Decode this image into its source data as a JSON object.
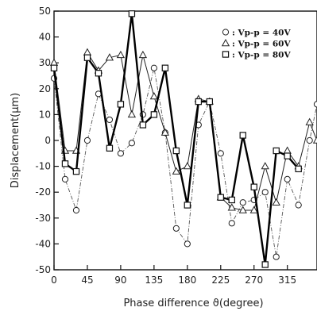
{
  "chart_data": {
    "type": "line",
    "title": "",
    "xlabel": "Phase difference ϑ(degree)",
    "ylabel": "Displacement(μm)",
    "xlim": [
      0,
      355
    ],
    "ylim": [
      -50,
      50
    ],
    "x_ticks": [
      0,
      45,
      90,
      135,
      180,
      225,
      270,
      315
    ],
    "y_ticks": [
      -50,
      -40,
      -30,
      -20,
      -10,
      0,
      10,
      20,
      30,
      40,
      50
    ],
    "x_tick_labels": [
      "0",
      "45",
      "90",
      "135",
      "180",
      "225",
      "270",
      "315"
    ],
    "y_tick_labels": [
      "-50",
      "-40",
      "-30",
      "-20",
      "-10",
      "0",
      "10",
      "20",
      "30",
      "40",
      "50"
    ],
    "grid": false,
    "legend_position": "top-right",
    "x": [
      0,
      15,
      30,
      45,
      60,
      75,
      90,
      105,
      120,
      135,
      150,
      165,
      180,
      195,
      210,
      225,
      240,
      255,
      270,
      285,
      300,
      315,
      330,
      345,
      355
    ],
    "series": [
      {
        "name": "Vp-p = 40V",
        "marker": "circle",
        "line_style": "dash-dot",
        "values": [
          24,
          -15,
          -27,
          0,
          18,
          8,
          -5,
          -1,
          10,
          28,
          3,
          -34,
          -40,
          6,
          15,
          -5,
          -32,
          -24,
          -23,
          -20,
          -45,
          -15,
          -25,
          0,
          14
        ]
      },
      {
        "name": "Vp-p = 60V",
        "marker": "triangle",
        "line_style": "thin-solid",
        "values": [
          30,
          -4,
          -4,
          34,
          27,
          32,
          33,
          10,
          33,
          17,
          3,
          -12,
          -10,
          16,
          15,
          -22,
          -26,
          -27,
          -27,
          -10,
          -24,
          -4,
          -10,
          7,
          0
        ]
      },
      {
        "name": "Vp-p = 80V",
        "marker": "square",
        "line_style": "thick-solid",
        "values": [
          28,
          -9,
          -12,
          32,
          26,
          -3,
          14,
          49,
          6,
          10,
          28,
          -4,
          -25,
          15,
          15,
          -22,
          -23,
          2,
          -18,
          -48,
          -4,
          -6,
          -11,
          null,
          null
        ]
      }
    ],
    "legend_labels": [
      ": Vp-p = 40V",
      ": Vp-p = 60V",
      ": Vp-p = 80V"
    ]
  }
}
